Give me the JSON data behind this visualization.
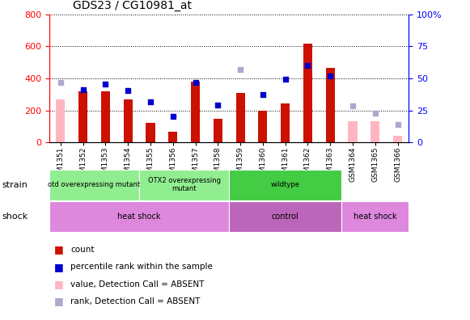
{
  "title": "GDS23 / CG10981_at",
  "samples": [
    "GSM1351",
    "GSM1352",
    "GSM1353",
    "GSM1354",
    "GSM1355",
    "GSM1356",
    "GSM1357",
    "GSM1358",
    "GSM1359",
    "GSM1360",
    "GSM1361",
    "GSM1362",
    "GSM1363",
    "GSM1364",
    "GSM1365",
    "GSM1366"
  ],
  "counts": [
    null,
    320,
    320,
    270,
    120,
    65,
    380,
    150,
    310,
    200,
    245,
    615,
    465,
    null,
    null,
    null
  ],
  "counts_absent": [
    270,
    null,
    null,
    null,
    null,
    null,
    null,
    null,
    null,
    null,
    null,
    null,
    null,
    130,
    130,
    40
  ],
  "ranks_left": [
    null,
    330,
    365,
    325,
    255,
    165,
    375,
    235,
    null,
    300,
    395,
    480,
    415,
    null,
    null,
    null
  ],
  "ranks_absent_left": [
    375,
    null,
    null,
    null,
    null,
    null,
    null,
    null,
    455,
    null,
    null,
    null,
    null,
    null,
    185,
    null
  ],
  "ranks_absent2_left": [
    null,
    null,
    null,
    null,
    null,
    null,
    null,
    null,
    null,
    null,
    null,
    null,
    null,
    230,
    null,
    110
  ],
  "ylim_left": [
    0,
    800
  ],
  "ylim_right": [
    0,
    100
  ],
  "yticks_left": [
    0,
    200,
    400,
    600,
    800
  ],
  "yticks_right": [
    0,
    25,
    50,
    75,
    100
  ],
  "ytick_right_labels": [
    "0",
    "25",
    "50",
    "75",
    "100%"
  ],
  "bar_color_present": "#CC1100",
  "bar_color_absent": "#FFB6C1",
  "dot_color_present": "#0000CC",
  "dot_color_absent": "#AAAACC",
  "strain_groups": [
    {
      "label": "otd overexpressing mutant",
      "start": 0,
      "end": 4,
      "color": "#90EE90"
    },
    {
      "label": "OTX2 overexpressing\nmutant",
      "start": 4,
      "end": 8,
      "color": "#90EE90"
    },
    {
      "label": "wildtype",
      "start": 8,
      "end": 13,
      "color": "#44CC44"
    }
  ],
  "shock_groups": [
    {
      "label": "heat shock",
      "start": 0,
      "end": 8,
      "color": "#DD88DD"
    },
    {
      "label": "control",
      "start": 8,
      "end": 13,
      "color": "#BB66BB"
    },
    {
      "label": "heat shock",
      "start": 13,
      "end": 16,
      "color": "#DD88DD"
    }
  ],
  "legend_items": [
    {
      "color": "#CC1100",
      "label": "count"
    },
    {
      "color": "#0000CC",
      "label": "percentile rank within the sample"
    },
    {
      "color": "#FFB6C1",
      "label": "value, Detection Call = ABSENT"
    },
    {
      "color": "#AAAACC",
      "label": "rank, Detection Call = ABSENT"
    }
  ]
}
